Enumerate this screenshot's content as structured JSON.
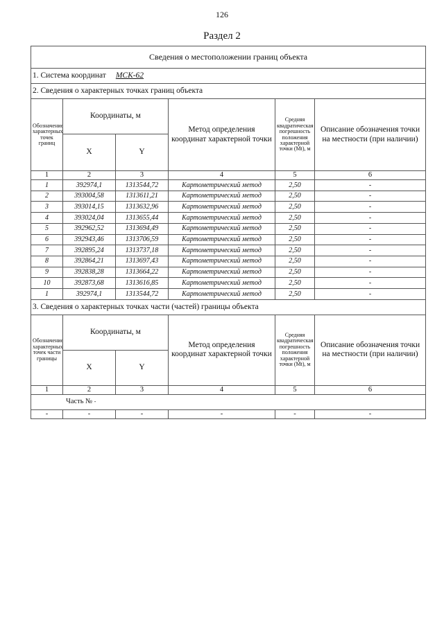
{
  "page_number": "126",
  "section_title": "Раздел 2",
  "table_title": "Сведения о местоположении границ объекта",
  "coord_system": {
    "label": "1. Система координат",
    "value": "МСК-62"
  },
  "section2": {
    "title": "2. Сведения о характерных точках границ объекта",
    "headers": {
      "col1": "Обозначение характерных точек границ",
      "coords": "Координаты, м",
      "x": "X",
      "y": "Y",
      "method": "Метод определения координат характерной точки",
      "accuracy": "Средняя квадратическая погрешность положения характерной точки (Mt), м",
      "description": "Описание обозначения точки на местности (при наличии)"
    },
    "col_numbers": [
      "1",
      "2",
      "3",
      "4",
      "5",
      "6"
    ],
    "rows": [
      [
        "1",
        "392974,1",
        "1313544,72",
        "Картометрический метод",
        "2,50",
        "-"
      ],
      [
        "2",
        "393004,58",
        "1313611,21",
        "Картометрический метод",
        "2,50",
        "-"
      ],
      [
        "3",
        "393014,15",
        "1313632,96",
        "Картометрический метод",
        "2,50",
        "-"
      ],
      [
        "4",
        "393024,04",
        "1313655,44",
        "Картометрический метод",
        "2,50",
        "-"
      ],
      [
        "5",
        "392962,52",
        "1313694,49",
        "Картометрический метод",
        "2,50",
        "-"
      ],
      [
        "6",
        "392943,46",
        "1313706,59",
        "Картометрический метод",
        "2,50",
        "-"
      ],
      [
        "7",
        "392895,24",
        "1313737,18",
        "Картометрический метод",
        "2,50",
        "-"
      ],
      [
        "8",
        "392864,21",
        "1313697,43",
        "Картометрический метод",
        "2,50",
        "-"
      ],
      [
        "9",
        "392838,28",
        "1313664,22",
        "Картометрический метод",
        "2,50",
        "-"
      ],
      [
        "10",
        "392873,68",
        "1313616,85",
        "Картометрический метод",
        "2,50",
        "-"
      ],
      [
        "1",
        "392974,1",
        "1313544,72",
        "Картометрический метод",
        "2,50",
        "-"
      ]
    ]
  },
  "section3": {
    "title": "3. Сведения о характерных точках части (частей) границы объекта",
    "headers": {
      "col1": "Обозначение характерных точек части границы",
      "coords": "Координаты, м",
      "x": "X",
      "y": "Y",
      "method": "Метод определения координат характерной точки",
      "accuracy": "Средняя квадратическая погрешность положения характерной точки (Mt), м",
      "description": "Описание обозначения точки на местности (при наличии)"
    },
    "col_numbers": [
      "1",
      "2",
      "3",
      "4",
      "5",
      "6"
    ],
    "part_label": "Часть №",
    "part_value": "-",
    "rows": [
      [
        "-",
        "-",
        "-",
        "-",
        "-",
        "-"
      ]
    ]
  }
}
